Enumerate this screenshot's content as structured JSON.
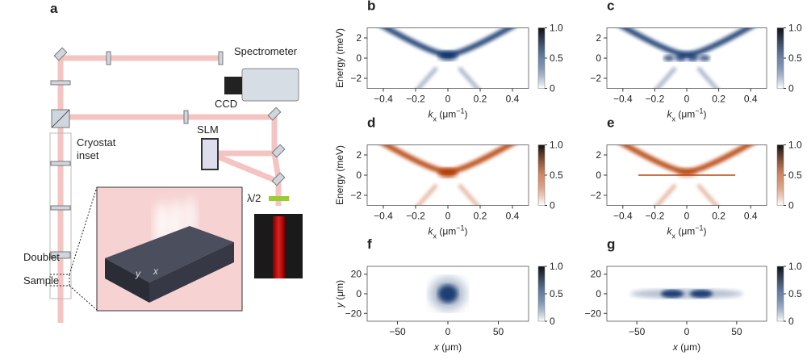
{
  "panel_a": {
    "label": "a",
    "spectrometer": "Spectrometer",
    "ccd": "CCD",
    "slm": "SLM",
    "cryostat": [
      "Cryostat",
      "inset"
    ],
    "half_wave": "λ/2",
    "doublet": "Doublet",
    "sample": "Sample",
    "inset_axes": [
      "y",
      "x"
    ]
  },
  "axes": {
    "kx": {
      "label": {
        "symbol": "k",
        "subscript": "x",
        "unit": " (μm",
        "exponent": "−1",
        "close": ")"
      },
      "lim": [
        -0.5,
        0.5
      ],
      "ticks": [
        {
          "value": -0.4,
          "label": "−0.4"
        },
        {
          "value": -0.2,
          "label": "−0.2"
        },
        0,
        0.2,
        0.4
      ]
    },
    "energy": {
      "label": "Energy (meV)",
      "lim": [
        -3,
        3
      ],
      "ticks": [
        2,
        0,
        {
          "value": -2,
          "label": "−2"
        }
      ]
    },
    "x": {
      "label": {
        "symbol": "x",
        "unit": " (μm)"
      },
      "lim": [
        -80,
        80
      ],
      "ticks": [
        {
          "value": -50,
          "label": "−50"
        },
        0,
        50
      ]
    },
    "y": {
      "label": {
        "symbol": "y",
        "unit": " (μm)"
      },
      "lim": [
        -28,
        28
      ],
      "ticks": [
        20,
        0,
        {
          "value": -20,
          "label": "−20"
        }
      ]
    },
    "colorbar": {
      "lim": [
        0,
        1
      ],
      "ticks": [
        0,
        0.5,
        {
          "value": 1,
          "label": "1.0"
        }
      ]
    }
  },
  "panels": [
    {
      "label": "b",
      "x": "kx",
      "y": "energy",
      "colormap": [
        "#ffffff",
        "#08306b"
      ],
      "show_ylabel": true
    },
    {
      "label": "c",
      "x": "kx",
      "y": "energy",
      "colormap": [
        "#ffffff",
        "#08306b"
      ],
      "show_ylabel": false
    },
    {
      "label": "d",
      "x": "kx",
      "y": "energy",
      "colormap": [
        "#ffffff",
        "#b33a00"
      ],
      "show_ylabel": true
    },
    {
      "label": "e",
      "x": "kx",
      "y": "energy",
      "colormap": [
        "#ffffff",
        "#b33a00"
      ],
      "show_ylabel": false
    },
    {
      "label": "f",
      "x": "x",
      "y": "y",
      "colormap": [
        "#ffffff",
        "#08306b"
      ],
      "show_ylabel": true
    },
    {
      "label": "g",
      "x": "x",
      "y": "y",
      "colormap": [
        "#ffffff",
        "#08306b"
      ],
      "show_ylabel": false
    }
  ]
}
